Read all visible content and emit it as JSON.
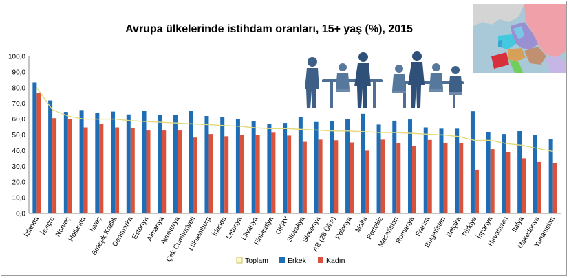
{
  "chart_data": {
    "type": "bar",
    "title": "Avrupa ülkelerinde istihdam oranları, 15+ yaş (%), 2015",
    "xlabel": "",
    "ylabel": "",
    "ylim": [
      0,
      100
    ],
    "ytick_step": 10,
    "ytick_labels": [
      "0,0",
      "10,0",
      "20,0",
      "30,0",
      "40,0",
      "50,0",
      "60,0",
      "70,0",
      "80,0",
      "90,0",
      "100,0"
    ],
    "grid": false,
    "legend_position": "bottom",
    "categories": [
      "İzlanda",
      "İsviçre",
      "Norveç",
      "Hollanda",
      "İsveç",
      "Birleşik Krallık",
      "Danimarka",
      "Estonya",
      "Almanya",
      "Avusturya",
      "Çek Cumhuriyeti",
      "Lüksemburg",
      "İrlanda",
      "Letonya",
      "Litvanya",
      "Finlandiya",
      "GKRY",
      "Slovakya",
      "Slovenya",
      "AB (28 Ülke)",
      "Polonya",
      "Malta",
      "Portekiz",
      "Macaristan",
      "Romanya",
      "Fransa",
      "Bulgaristan",
      "Belçika",
      "Türkiye",
      "İspanya",
      "Hırvatistan",
      "İtalya",
      "Makedonya",
      "Yunanistan"
    ],
    "series": [
      {
        "name": "Toplam",
        "kind": "line",
        "color": "#f5f0a0",
        "values": [
          80.0,
          66.0,
          62.0,
          60.0,
          60.0,
          60.0,
          59.0,
          58.5,
          58.0,
          57.5,
          57.0,
          56.5,
          56.0,
          55.5,
          54.5,
          54.0,
          54.0,
          53.5,
          53.0,
          52.5,
          52.5,
          52.0,
          51.5,
          51.5,
          51.0,
          50.5,
          50.0,
          49.0,
          46.5,
          46.5,
          44.5,
          43.5,
          41.5,
          39.5
        ]
      },
      {
        "name": "Erkek",
        "kind": "bar",
        "color": "#1f6eb5",
        "values": [
          83.2,
          71.8,
          64.6,
          65.8,
          64.0,
          64.8,
          63.0,
          65.2,
          62.8,
          62.6,
          65.2,
          62.0,
          61.2,
          60.2,
          58.8,
          56.8,
          57.6,
          61.2,
          58.2,
          58.8,
          60.0,
          63.4,
          56.6,
          59.0,
          59.8,
          54.8,
          54.0,
          54.0,
          65.0,
          51.8,
          50.6,
          52.4,
          49.8,
          47.2
        ]
      },
      {
        "name": "Kadın",
        "kind": "bar",
        "color": "#d9533c",
        "values": [
          76.6,
          60.6,
          60.0,
          54.8,
          57.0,
          54.8,
          54.4,
          52.8,
          52.8,
          52.8,
          48.4,
          50.6,
          49.2,
          50.0,
          50.2,
          51.4,
          49.6,
          45.6,
          47.0,
          46.6,
          45.2,
          40.0,
          47.0,
          44.6,
          43.0,
          46.8,
          45.0,
          44.6,
          28.0,
          41.0,
          39.2,
          35.2,
          32.8,
          32.2
        ]
      }
    ]
  },
  "decorations": {
    "inset_image": "office-meeting-silhouettes-icon",
    "inset_map": "europe-map-icon"
  }
}
